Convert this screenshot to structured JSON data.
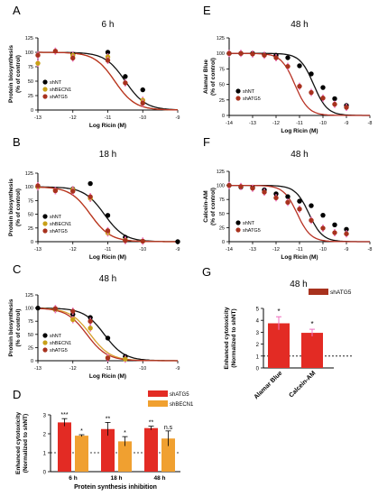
{
  "colors": {
    "shNT": "#000000",
    "shBECN1": "#c8a018",
    "shATG5": "#a8321e",
    "barATG5": "#e32b24",
    "barBECN1": "#f0a030",
    "fitNT": "#111111",
    "fitATG5": "#b83224",
    "fitBECN1": "#d8a030",
    "errPink": "#f070c0"
  },
  "chart_data": [
    {
      "panel": "A",
      "type": "line",
      "title": "6 h",
      "xlabel": "Log Ricin (M)",
      "ylabel": [
        "Protein biosynthesis",
        "(% of control)"
      ],
      "xlim": [
        -13,
        -9
      ],
      "ylim": [
        0,
        125
      ],
      "xticks": [
        "-13",
        "-12",
        "-11",
        "-10",
        "-9"
      ],
      "yticks": [
        "0",
        "25",
        "50",
        "75",
        "100",
        "125"
      ],
      "series": [
        {
          "name": "shNT",
          "ic50": -10.5,
          "x": [
            -12,
            -11,
            -10.5,
            -10
          ],
          "y": [
            97,
            100,
            58,
            35
          ]
        },
        {
          "name": "shBECN1",
          "ic50": -10.8,
          "x": [
            -13,
            -12,
            -11,
            -10
          ],
          "y": [
            81,
            95,
            92,
            17
          ]
        },
        {
          "name": "shATG5",
          "ic50": -10.8,
          "x": [
            -13,
            -12.5,
            -12,
            -11,
            -10.5,
            -10
          ],
          "y": [
            95,
            102,
            90,
            86,
            47,
            12
          ]
        }
      ]
    },
    {
      "panel": "B",
      "type": "line",
      "title": "18 h",
      "xlabel": "Log Ricin (M)",
      "ylabel": [
        "Protein biosynthesis",
        "(% of control)"
      ],
      "xlim": [
        -13,
        -9
      ],
      "ylim": [
        0,
        125
      ],
      "xticks": [
        "-13",
        "-12",
        "-11",
        "-10",
        "-9"
      ],
      "yticks": [
        "0",
        "25",
        "50",
        "75",
        "100",
        "125"
      ],
      "series": [
        {
          "name": "shNT",
          "ic50": -11.1,
          "x": [
            -13,
            -12,
            -11.5,
            -11,
            -10.5,
            -10,
            -9
          ],
          "y": [
            100,
            96,
            106,
            48,
            8,
            1,
            0
          ]
        },
        {
          "name": "shBECN1",
          "ic50": -11.5,
          "x": [
            -13,
            -12.5,
            -12,
            -11.5,
            -11,
            -10.5,
            -10
          ],
          "y": [
            100,
            93,
            95,
            79,
            16,
            3,
            1
          ]
        },
        {
          "name": "shATG5",
          "ic50": -11.5,
          "x": [
            -13,
            -12.5,
            -12,
            -11.5,
            -11,
            -10.5,
            -10
          ],
          "y": [
            102,
            93,
            92,
            82,
            20,
            2,
            1
          ]
        }
      ]
    },
    {
      "panel": "C",
      "type": "line",
      "title": "48 h",
      "xlabel": "Log Ricin (M)",
      "ylabel": [
        "Protein biosynthesis",
        "(% of control)"
      ],
      "xlim": [
        -13,
        -9
      ],
      "ylim": [
        0,
        125
      ],
      "xticks": [
        "-13",
        "-12",
        "-11",
        "-10",
        "-9"
      ],
      "yticks": [
        "0",
        "25",
        "50",
        "75",
        "100",
        "125"
      ],
      "series": [
        {
          "name": "shNT",
          "ic50": -11.1,
          "x": [
            -13,
            -12.5,
            -12,
            -11.5,
            -11,
            -10.5
          ],
          "y": [
            100,
            97,
            88,
            82,
            43,
            8
          ]
        },
        {
          "name": "shBECN1",
          "ic50": -11.5,
          "x": [
            -12.5,
            -12,
            -11.5,
            -11,
            -10.5
          ],
          "y": [
            97,
            78,
            62,
            6,
            3
          ]
        },
        {
          "name": "shATG5",
          "ic50": -11.6,
          "x": [
            -12.5,
            -12,
            -11.5,
            -11
          ],
          "y": [
            99,
            94,
            75,
            5
          ]
        }
      ]
    },
    {
      "panel": "D",
      "type": "bar",
      "xlabel": "Protein synthesis inhibition",
      "ylabel": [
        "Enhanced cytotoxicity",
        "(Normalized to shNT)"
      ],
      "ylim": [
        0,
        3
      ],
      "yticks": [
        "0",
        "1",
        "2",
        "3"
      ],
      "categories": [
        "6 h",
        "18 h",
        "48 h"
      ],
      "series": [
        {
          "name": "shATG5",
          "values": [
            2.6,
            2.25,
            2.3
          ],
          "err": [
            0.2,
            0.35,
            0.1
          ]
        },
        {
          "name": "shBECN1",
          "values": [
            1.9,
            1.6,
            1.75
          ],
          "err": [
            0.05,
            0.25,
            0.4
          ]
        }
      ],
      "significance": [
        [
          "***",
          "*"
        ],
        [
          "**",
          "*"
        ],
        [
          "**",
          "n.s"
        ]
      ]
    },
    {
      "panel": "E",
      "type": "line",
      "title": "48 h",
      "xlabel": "Log Ricin (M)",
      "ylabel": [
        "Alamar Blue",
        "(% of control)"
      ],
      "xlim": [
        -14,
        -8
      ],
      "ylim": [
        0,
        125
      ],
      "xticks": [
        "-14",
        "-13",
        "-12",
        "-11",
        "-10",
        "-9",
        "-8"
      ],
      "yticks": [
        "0",
        "25",
        "50",
        "75",
        "100",
        "125"
      ],
      "series": [
        {
          "name": "shNT",
          "ic50": -10.4,
          "x": [
            -14,
            -13.5,
            -13,
            -12.5,
            -12,
            -11.5,
            -11,
            -10.5,
            -10,
            -9.5,
            -9
          ],
          "y": [
            100,
            100,
            100,
            98,
            97,
            93,
            80,
            67,
            45,
            27,
            16
          ]
        },
        {
          "name": "shATG5",
          "ic50": -11.2,
          "x": [
            -14,
            -13.5,
            -13,
            -12.5,
            -12,
            -11.5,
            -11,
            -10.5,
            -10,
            -9.5,
            -9
          ],
          "y": [
            100,
            100,
            99,
            97,
            93,
            79,
            47,
            37,
            28,
            18,
            13
          ]
        }
      ]
    },
    {
      "panel": "F",
      "type": "line",
      "title": "48 h",
      "xlabel": "Log Ricin (M)",
      "ylabel": [
        "Calcein-AM",
        "(% of control)"
      ],
      "xlim": [
        -14,
        -8
      ],
      "ylim": [
        0,
        125
      ],
      "xticks": [
        "-14",
        "-13",
        "-12",
        "-11",
        "-10",
        "-9",
        "-8"
      ],
      "yticks": [
        "0",
        "25",
        "50",
        "75",
        "100",
        "125"
      ],
      "series": [
        {
          "name": "shNT",
          "ic50": -10.6,
          "x": [
            -14,
            -13.5,
            -13,
            -12.5,
            -12,
            -11.5,
            -11,
            -10.5,
            -10,
            -9.5,
            -9
          ],
          "y": [
            100,
            97,
            96,
            92,
            85,
            80,
            72,
            64,
            47,
            30,
            22
          ]
        },
        {
          "name": "shATG5",
          "ic50": -11.1,
          "x": [
            -14,
            -13.5,
            -13,
            -12.5,
            -12,
            -11.5,
            -11,
            -10.5,
            -10,
            -9.5,
            -9
          ],
          "y": [
            100,
            98,
            95,
            88,
            78,
            70,
            58,
            38,
            24,
            16,
            14
          ]
        }
      ]
    },
    {
      "panel": "G",
      "type": "bar",
      "title": "48 h",
      "ylabel": [
        "Enhanced cytotoxicity",
        "(Normalized to shNT)"
      ],
      "ylim": [
        0,
        5
      ],
      "yticks": [
        "0",
        "1",
        "2",
        "3",
        "4",
        "5"
      ],
      "categories": [
        "Alamar Blue",
        "Calcein-AM"
      ],
      "series": [
        {
          "name": "shATG5",
          "values": [
            3.75,
            2.95
          ],
          "err": [
            0.55,
            0.3
          ]
        }
      ],
      "significance": [
        "*",
        "*"
      ]
    }
  ]
}
